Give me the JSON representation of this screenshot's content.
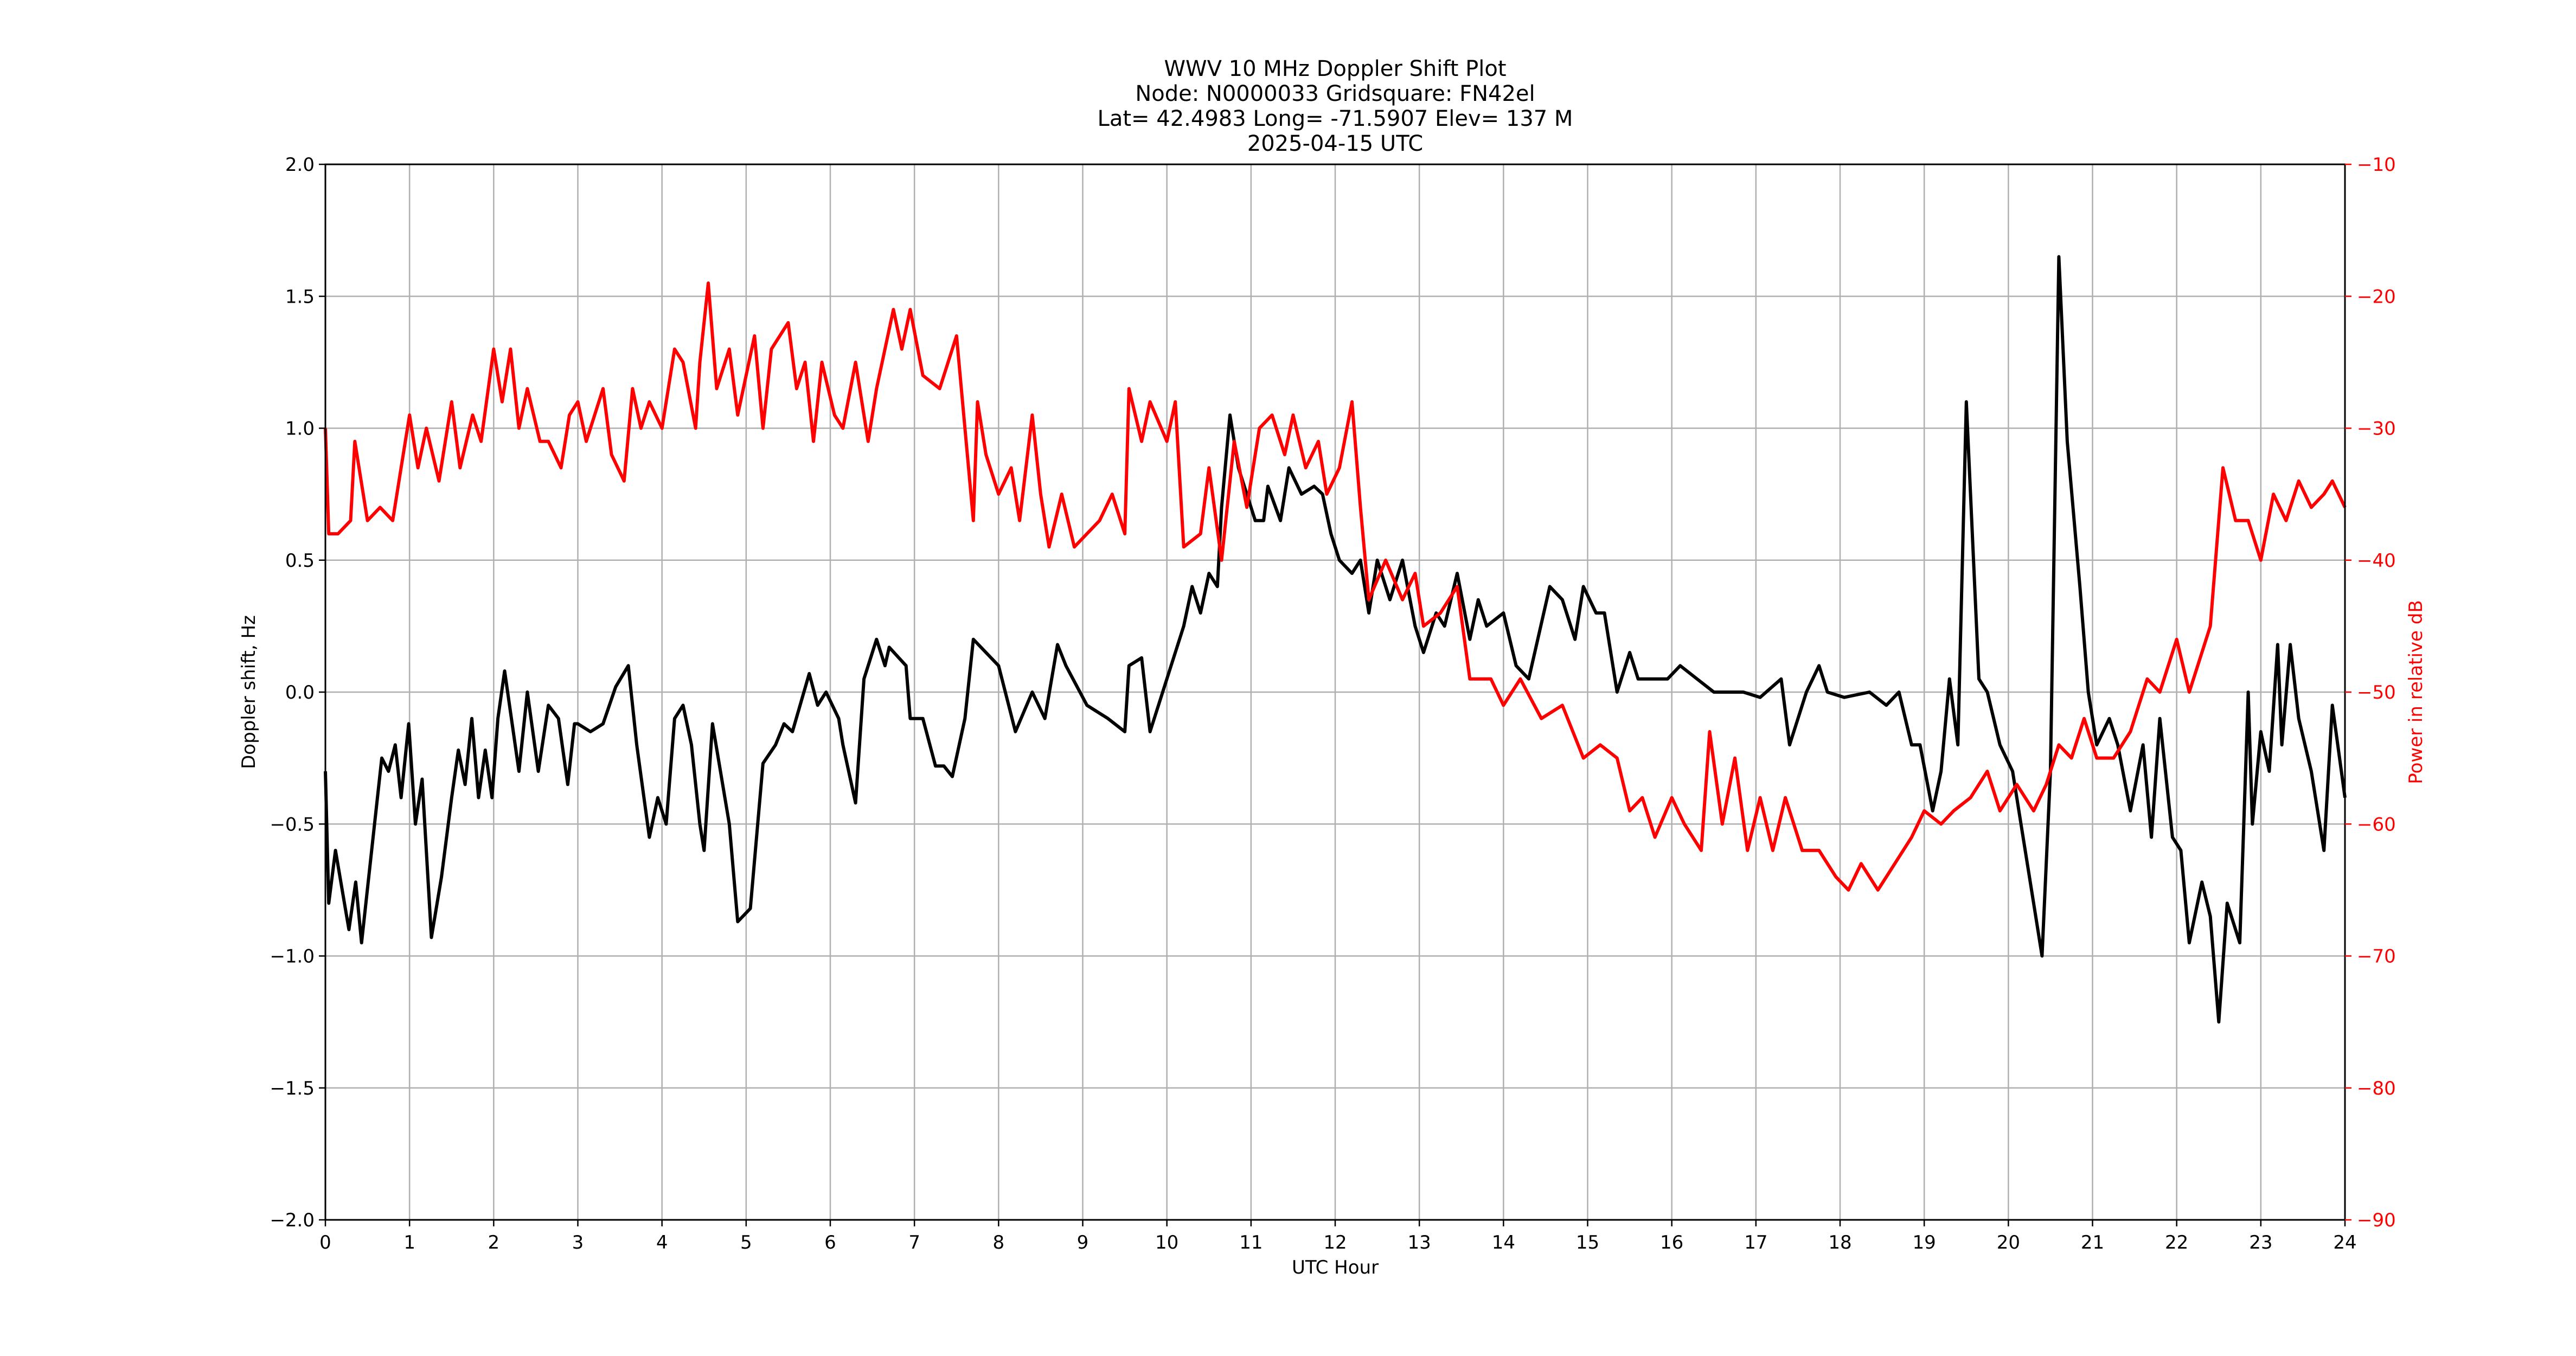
{
  "chart_data": {
    "type": "line",
    "title_lines": [
      "WWV 10 MHz Doppler Shift Plot",
      "Node:  N0000033     Gridsquare:  FN42el",
      "Lat= 42.4983    Long= -71.5907    Elev= 137 M",
      "2025-04-15  UTC"
    ],
    "xlabel": "UTC Hour",
    "ylabel": "Doppler shift, Hz",
    "y2label": "Power in relative dB",
    "xlim": [
      0,
      24
    ],
    "xticks": [
      0,
      1,
      2,
      3,
      4,
      5,
      6,
      7,
      8,
      9,
      10,
      11,
      12,
      13,
      14,
      15,
      16,
      17,
      18,
      19,
      20,
      21,
      22,
      23,
      24
    ],
    "ylim": [
      -2,
      2
    ],
    "yticks": [
      {
        "value": -2,
        "label": "−2.0"
      },
      {
        "value": -1.5,
        "label": "−1.5"
      },
      {
        "value": -1,
        "label": "−1.0"
      },
      {
        "value": -0.5,
        "label": "−0.5"
      },
      {
        "value": 0,
        "label": "0.0"
      },
      {
        "value": 0.5,
        "label": "0.5"
      },
      {
        "value": 1,
        "label": "1.0"
      },
      {
        "value": 1.5,
        "label": "1.5"
      },
      {
        "value": 2,
        "label": "2.0"
      }
    ],
    "y2lim": [
      -90,
      -10
    ],
    "y2ticks": [
      {
        "value": -90,
        "label": "−90"
      },
      {
        "value": -80,
        "label": "−80"
      },
      {
        "value": -70,
        "label": "−70"
      },
      {
        "value": -60,
        "label": "−60"
      },
      {
        "value": -50,
        "label": "−50"
      },
      {
        "value": -40,
        "label": "−40"
      },
      {
        "value": -30,
        "label": "−30"
      },
      {
        "value": -20,
        "label": "−20"
      },
      {
        "value": -10,
        "label": "−10"
      }
    ],
    "grid": true,
    "y2color": "#ff0000",
    "series": [
      {
        "color": "#000000",
        "axis": "y",
        "x": [
          0,
          0.04,
          0.12,
          0.2,
          0.28,
          0.36,
          0.43,
          0.55,
          0.67,
          0.75,
          0.83,
          0.9,
          0.99,
          1.07,
          1.15,
          1.26,
          1.38,
          1.5,
          1.58,
          1.66,
          1.74,
          1.82,
          1.9,
          1.98,
          2.05,
          2.13,
          2.3,
          2.4,
          2.53,
          2.65,
          2.77,
          2.88,
          2.96,
          3.0,
          3.15,
          3.3,
          3.45,
          3.6,
          3.7,
          3.85,
          3.95,
          4.05,
          4.15,
          4.25,
          4.35,
          4.45,
          4.5,
          4.6,
          4.8,
          4.9,
          5.05,
          5.2,
          5.35,
          5.45,
          5.55,
          5.75,
          5.85,
          5.95,
          6.1,
          6.15,
          6.3,
          6.4,
          6.55,
          6.65,
          6.7,
          6.9,
          6.95,
          7.1,
          7.25,
          7.35,
          7.45,
          7.6,
          7.7,
          8.0,
          8.2,
          8.4,
          8.55,
          8.7,
          8.8,
          9.05,
          9.3,
          9.5,
          9.55,
          9.7,
          9.8,
          9.95,
          10.1,
          10.2,
          10.3,
          10.4,
          10.5,
          10.6,
          10.65,
          10.75,
          10.85,
          10.95,
          11.05,
          11.15,
          11.2,
          11.35,
          11.45,
          11.6,
          11.75,
          11.85,
          11.95,
          12.05,
          12.2,
          12.3,
          12.4,
          12.5,
          12.65,
          12.8,
          12.95,
          13.05,
          13.2,
          13.3,
          13.45,
          13.6,
          13.7,
          13.8,
          14.0,
          14.15,
          14.3,
          14.55,
          14.7,
          14.85,
          14.95,
          15.1,
          15.2,
          15.35,
          15.5,
          15.6,
          15.75,
          15.95,
          16.1,
          16.3,
          16.5,
          16.65,
          16.85,
          17.05,
          17.3,
          17.4,
          17.6,
          17.75,
          17.85,
          18.05,
          18.35,
          18.55,
          18.7,
          18.85,
          18.95,
          19.1,
          19.2,
          19.3,
          19.4,
          19.5,
          19.65,
          19.75,
          19.9,
          20.05,
          20.15,
          20.3,
          20.4,
          20.5,
          20.6,
          20.7,
          20.85,
          20.95,
          21.05,
          21.2,
          21.3,
          21.45,
          21.6,
          21.7,
          21.8,
          21.95,
          22.05,
          22.15,
          22.3,
          22.4,
          22.5,
          22.6,
          22.75,
          22.85,
          22.9,
          23.0,
          23.1,
          23.2,
          23.25,
          23.35,
          23.45,
          23.6,
          23.75,
          23.85,
          24.0
        ],
        "values": [
          -0.3,
          -0.8,
          -0.6,
          -0.75,
          -0.9,
          -0.72,
          -0.95,
          -0.6,
          -0.25,
          -0.3,
          -0.2,
          -0.4,
          -0.12,
          -0.5,
          -0.33,
          -0.93,
          -0.7,
          -0.4,
          -0.22,
          -0.35,
          -0.1,
          -0.4,
          -0.22,
          -0.4,
          -0.1,
          0.08,
          -0.3,
          0.0,
          -0.3,
          -0.05,
          -0.1,
          -0.35,
          -0.12,
          -0.12,
          -0.15,
          -0.12,
          0.02,
          0.1,
          -0.2,
          -0.55,
          -0.4,
          -0.5,
          -0.1,
          -0.05,
          -0.2,
          -0.5,
          -0.6,
          -0.12,
          -0.5,
          -0.87,
          -0.82,
          -0.27,
          -0.2,
          -0.12,
          -0.15,
          0.07,
          -0.05,
          0.0,
          -0.1,
          -0.2,
          -0.42,
          0.05,
          0.2,
          0.1,
          0.17,
          0.1,
          -0.1,
          -0.1,
          -0.28,
          -0.28,
          -0.32,
          -0.1,
          0.2,
          0.1,
          -0.15,
          0.0,
          -0.1,
          0.18,
          0.1,
          -0.05,
          -0.1,
          -0.15,
          0.1,
          0.13,
          -0.15,
          0.0,
          0.15,
          0.25,
          0.4,
          0.3,
          0.45,
          0.4,
          0.7,
          1.05,
          0.85,
          0.75,
          0.65,
          0.65,
          0.78,
          0.65,
          0.85,
          0.75,
          0.78,
          0.75,
          0.6,
          0.5,
          0.45,
          0.5,
          0.3,
          0.5,
          0.35,
          0.5,
          0.25,
          0.15,
          0.3,
          0.25,
          0.45,
          0.2,
          0.35,
          0.25,
          0.3,
          0.1,
          0.05,
          0.4,
          0.35,
          0.2,
          0.4,
          0.3,
          0.3,
          0.0,
          0.15,
          0.05,
          0.05,
          0.05,
          0.1,
          0.05,
          0.0,
          0.0,
          0.0,
          -0.02,
          0.05,
          -0.2,
          0.0,
          0.1,
          0.0,
          -0.02,
          0.0,
          -0.05,
          0.0,
          -0.2,
          -0.2,
          -0.45,
          -0.3,
          0.05,
          -0.2,
          1.1,
          0.05,
          0.0,
          -0.2,
          -0.3,
          -0.5,
          -0.8,
          -1.0,
          -0.3,
          1.65,
          0.95,
          0.4,
          0.0,
          -0.2,
          -0.1,
          -0.2,
          -0.45,
          -0.2,
          -0.55,
          -0.1,
          -0.55,
          -0.6,
          -0.95,
          -0.72,
          -0.85,
          -1.25,
          -0.8,
          -0.95,
          0.0,
          -0.5,
          -0.15,
          -0.3,
          0.18,
          -0.2,
          0.18,
          -0.1,
          -0.3,
          -0.6,
          -0.05,
          -0.4
        ]
      },
      {
        "color": "#ff0000",
        "axis": "y2",
        "x": [
          0,
          0.04,
          0.15,
          0.3,
          0.35,
          0.5,
          0.65,
          0.8,
          0.9,
          1.0,
          1.1,
          1.2,
          1.35,
          1.5,
          1.6,
          1.75,
          1.85,
          2.0,
          2.1,
          2.2,
          2.3,
          2.4,
          2.55,
          2.65,
          2.8,
          2.9,
          3.0,
          3.1,
          3.3,
          3.4,
          3.55,
          3.65,
          3.75,
          3.85,
          4.0,
          4.15,
          4.25,
          4.4,
          4.45,
          4.55,
          4.65,
          4.8,
          4.9,
          5.1,
          5.2,
          5.3,
          5.5,
          5.6,
          5.7,
          5.8,
          5.9,
          6.05,
          6.15,
          6.3,
          6.45,
          6.55,
          6.75,
          6.85,
          6.95,
          7.1,
          7.3,
          7.5,
          7.7,
          7.75,
          7.85,
          8.0,
          8.15,
          8.25,
          8.4,
          8.5,
          8.6,
          8.75,
          8.9,
          9.05,
          9.2,
          9.35,
          9.5,
          9.55,
          9.7,
          9.8,
          10.0,
          10.1,
          10.2,
          10.4,
          10.5,
          10.65,
          10.8,
          10.95,
          11.1,
          11.25,
          11.4,
          11.5,
          11.65,
          11.8,
          11.9,
          12.05,
          12.2,
          12.3,
          12.4,
          12.6,
          12.8,
          12.95,
          13.05,
          13.25,
          13.45,
          13.6,
          13.85,
          14.0,
          14.2,
          14.45,
          14.7,
          14.95,
          15.15,
          15.35,
          15.5,
          15.65,
          15.8,
          16.0,
          16.15,
          16.35,
          16.45,
          16.6,
          16.75,
          16.9,
          17.05,
          17.2,
          17.35,
          17.55,
          17.75,
          17.95,
          18.1,
          18.25,
          18.45,
          18.65,
          18.85,
          19.0,
          19.2,
          19.35,
          19.55,
          19.75,
          19.9,
          20.1,
          20.3,
          20.45,
          20.6,
          20.75,
          20.9,
          21.05,
          21.25,
          21.45,
          21.65,
          21.8,
          22.0,
          22.15,
          22.3,
          22.4,
          22.55,
          22.7,
          22.85,
          23.0,
          23.15,
          23.3,
          23.45,
          23.6,
          23.75,
          23.85,
          24.0
        ],
        "values": [
          -30,
          -38,
          -38,
          -37,
          -31,
          -37,
          -36,
          -37,
          -33,
          -29,
          -33,
          -30,
          -34,
          -28,
          -33,
          -29,
          -31,
          -24,
          -28,
          -24,
          -30,
          -27,
          -31,
          -31,
          -33,
          -29,
          -28,
          -31,
          -27,
          -32,
          -34,
          -27,
          -30,
          -28,
          -30,
          -24,
          -25,
          -30,
          -25,
          -19,
          -27,
          -24,
          -29,
          -23,
          -30,
          -24,
          -22,
          -27,
          -25,
          -31,
          -25,
          -29,
          -30,
          -25,
          -31,
          -27,
          -21,
          -24,
          -21,
          -26,
          -27,
          -23,
          -37,
          -28,
          -32,
          -35,
          -33,
          -37,
          -29,
          -35,
          -39,
          -35,
          -39,
          -38,
          -37,
          -35,
          -38,
          -27,
          -31,
          -28,
          -31,
          -28,
          -39,
          -38,
          -33,
          -40,
          -31,
          -36,
          -30,
          -29,
          -32,
          -29,
          -33,
          -31,
          -35,
          -33,
          -28,
          -36,
          -43,
          -40,
          -43,
          -41,
          -45,
          -44,
          -42,
          -49,
          -49,
          -51,
          -49,
          -52,
          -51,
          -55,
          -54,
          -55,
          -59,
          -58,
          -61,
          -58,
          -60,
          -62,
          -53,
          -60,
          -55,
          -62,
          -58,
          -62,
          -58,
          -62,
          -62,
          -64,
          -65,
          -63,
          -65,
          -63,
          -61,
          -59,
          -60,
          -59,
          -58,
          -56,
          -59,
          -57,
          -59,
          -57,
          -54,
          -55,
          -52,
          -55,
          -55,
          -53,
          -49,
          -50,
          -46,
          -50,
          -47,
          -45,
          -33,
          -37,
          -37,
          -40,
          -35,
          -37,
          -34,
          -36,
          -35,
          -34,
          -36
        ]
      }
    ]
  }
}
